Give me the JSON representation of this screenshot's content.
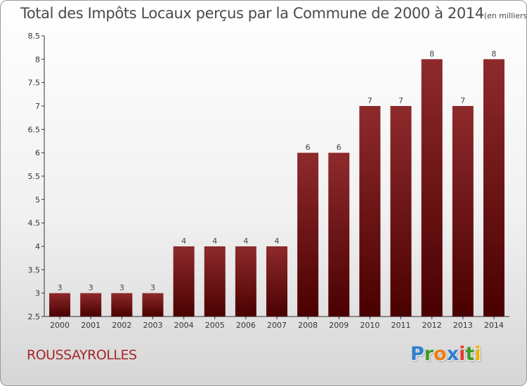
{
  "chart_data": {
    "type": "bar",
    "title": "Total des Impôts Locaux perçus par la Commune de 2000 à 2014",
    "subtitle": "(en milliers d'€)",
    "categories": [
      "2000",
      "2001",
      "2002",
      "2003",
      "2004",
      "2005",
      "2006",
      "2007",
      "2008",
      "2009",
      "2010",
      "2011",
      "2012",
      "2013",
      "2014"
    ],
    "values": [
      3,
      3,
      3,
      3,
      4,
      4,
      4,
      4,
      6,
      6,
      7,
      7,
      8,
      7,
      8
    ],
    "ylim": [
      2.5,
      8.5
    ],
    "yticks": [
      "2.5",
      "3",
      "3.5",
      "4",
      "4.5",
      "5",
      "5.5",
      "6",
      "6.5",
      "7",
      "7.5",
      "8",
      "8.5"
    ],
    "grid": false,
    "bar_color": "#7a1a1c"
  },
  "commune": "ROUSSAYROLLES",
  "logo": {
    "text": "Proxiti",
    "letters": [
      {
        "ch": "P",
        "color": "#2f7fd0"
      },
      {
        "ch": "r",
        "color": "#3f9a2a"
      },
      {
        "ch": "o",
        "color": "#f07d12"
      },
      {
        "ch": "x",
        "color": "#2f7fd0"
      },
      {
        "ch": "i",
        "color": "#e23a2c"
      },
      {
        "ch": "t",
        "color": "#3f9a2a"
      },
      {
        "ch": "i",
        "color": "#f0b000"
      }
    ]
  }
}
